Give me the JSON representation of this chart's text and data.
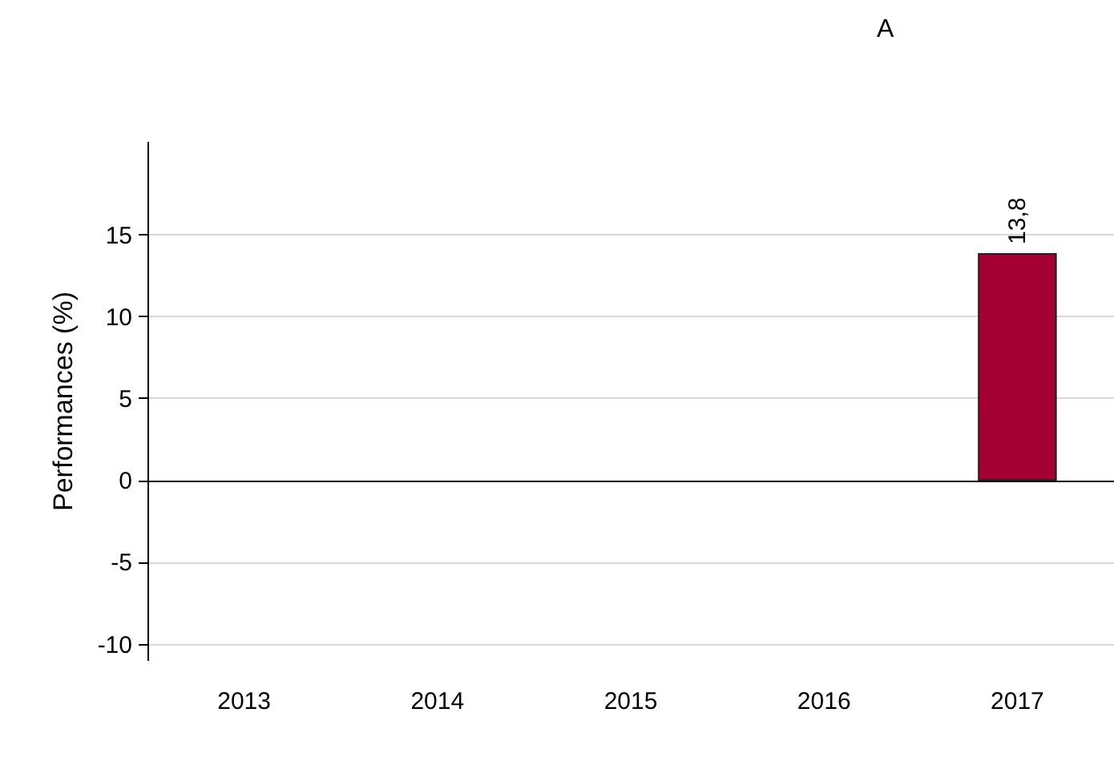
{
  "chart_data": {
    "type": "bar",
    "ylabel": "Performances (%)",
    "annotations": [
      "A"
    ],
    "categories": [
      "2013",
      "2014",
      "2015",
      "2016",
      "2017"
    ],
    "series": [
      {
        "color": "#a50034",
        "values": [
          null,
          null,
          null,
          null,
          13.8
        ]
      }
    ],
    "value_labels": [
      null,
      null,
      null,
      null,
      "13,8"
    ],
    "ylim": [
      -11,
      20.7
    ],
    "yticks": [
      -10,
      -5,
      0,
      5,
      10,
      15
    ],
    "grid": "y"
  }
}
